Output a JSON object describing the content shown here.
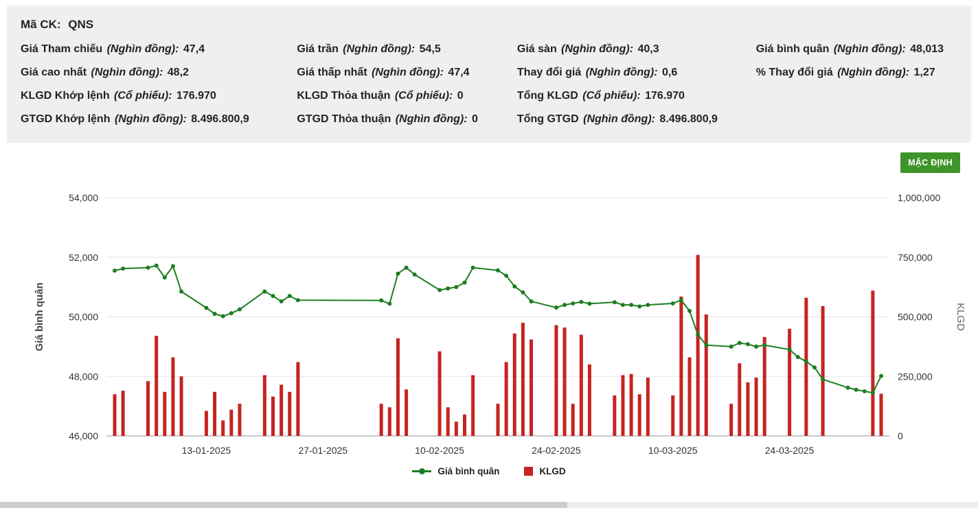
{
  "info": {
    "symbol_label": "Mã CK:",
    "symbol": "QNS",
    "cells": [
      {
        "label": "Giá Tham chiếu",
        "unit": "(Nghìn đồng):",
        "value": "47,4"
      },
      {
        "label": "Giá trần",
        "unit": "(Nghìn đồng):",
        "value": "54,5"
      },
      {
        "label": "Giá sàn",
        "unit": "(Nghìn đồng):",
        "value": "40,3"
      },
      {
        "label": "Giá bình quân",
        "unit": "(Nghìn đồng):",
        "value": "48,013"
      },
      {
        "label": "Giá cao nhất",
        "unit": "(Nghìn đồng):",
        "value": "48,2"
      },
      {
        "label": "Giá thấp nhất",
        "unit": "(Nghìn đồng):",
        "value": "47,4"
      },
      {
        "label": "Thay đổi giá",
        "unit": "(Nghìn đồng):",
        "value": "0,6"
      },
      {
        "label": "% Thay đổi giá",
        "unit": "(Nghìn đồng):",
        "value": "1,27"
      },
      {
        "label": "KLGD Khớp lệnh",
        "unit": "(Cổ phiếu):",
        "value": "176.970"
      },
      {
        "label": "KLGD Thỏa thuận",
        "unit": "(Cổ phiếu):",
        "value": "0"
      },
      {
        "label": "Tổng KLGD",
        "unit": "(Cổ phiếu):",
        "value": "176.970"
      },
      {
        "label": "GTGD Khớp lệnh",
        "unit": "(Nghìn đồng):",
        "value": "8.496.800,9"
      },
      {
        "label": "GTGD Thỏa thuận",
        "unit": "(Nghìn đồng):",
        "value": "0"
      },
      {
        "label": "Tổng GTGD",
        "unit": "(Nghìn đồng):",
        "value": "8.496.800,9"
      }
    ]
  },
  "chart": {
    "button_label": "MẶC ĐỊNH",
    "legend": [
      {
        "name": "Giá bình quân",
        "type": "line"
      },
      {
        "name": "KLGD",
        "type": "bar"
      }
    ]
  },
  "colors": {
    "line_green": "#1e7d20",
    "bar_red": "#c62420",
    "button_green": "#3d9428",
    "grid": "#e4e4e4",
    "text": "#333333"
  },
  "chart_data": {
    "type": "line+bar",
    "title": "",
    "xlabel": "",
    "ylabel_left": "Giá bình quân",
    "ylabel_right": "KLGD",
    "y_left_range": [
      46000,
      54000
    ],
    "y_right_range": [
      0,
      1000000
    ],
    "grid": true,
    "legend_position": "bottom",
    "price_ticks": [
      "46,000",
      "48,000",
      "50,000",
      "52,000",
      "54,000"
    ],
    "volume_ticks": [
      "0",
      "250,000",
      "500,000",
      "750,000",
      "1,000,000"
    ],
    "x_ticks": [
      "13-01-2025",
      "27-01-2025",
      "10-02-2025",
      "24-02-2025",
      "10-03-2025",
      "24-03-2025"
    ],
    "series": [
      {
        "name": "Giá bình quân",
        "type": "line",
        "axis": "left"
      },
      {
        "name": "KLGD",
        "type": "bar",
        "axis": "right"
      }
    ],
    "points": [
      {
        "date": "02-01-2025",
        "price": 51550,
        "volume": 175000
      },
      {
        "date": "03-01-2025",
        "price": 51620,
        "volume": 190000
      },
      {
        "date": "06-01-2025",
        "price": 51650,
        "volume": 230000
      },
      {
        "date": "07-01-2025",
        "price": 51720,
        "volume": 420000
      },
      {
        "date": "08-01-2025",
        "price": 51320,
        "volume": 185000
      },
      {
        "date": "09-01-2025",
        "price": 51700,
        "volume": 330000
      },
      {
        "date": "10-01-2025",
        "price": 50850,
        "volume": 250000
      },
      {
        "date": "13-01-2025",
        "price": 50300,
        "volume": 105000
      },
      {
        "date": "14-01-2025",
        "price": 50100,
        "volume": 185000
      },
      {
        "date": "15-01-2025",
        "price": 50020,
        "volume": 65000
      },
      {
        "date": "16-01-2025",
        "price": 50120,
        "volume": 110000
      },
      {
        "date": "17-01-2025",
        "price": 50250,
        "volume": 135000
      },
      {
        "date": "20-01-2025",
        "price": 50850,
        "volume": 255000
      },
      {
        "date": "21-01-2025",
        "price": 50700,
        "volume": 165000
      },
      {
        "date": "22-01-2025",
        "price": 50520,
        "volume": 215000
      },
      {
        "date": "23-01-2025",
        "price": 50700,
        "volume": 185000
      },
      {
        "date": "24-01-2025",
        "price": 50560,
        "volume": 310000
      },
      {
        "date": "03-02-2025",
        "price": 50550,
        "volume": 135000
      },
      {
        "date": "04-02-2025",
        "price": 50440,
        "volume": 120000
      },
      {
        "date": "05-02-2025",
        "price": 51450,
        "volume": 410000
      },
      {
        "date": "06-02-2025",
        "price": 51650,
        "volume": 195000
      },
      {
        "date": "07-02-2025",
        "price": 51420,
        "volume": 0
      },
      {
        "date": "10-02-2025",
        "price": 50900,
        "volume": 355000
      },
      {
        "date": "11-02-2025",
        "price": 50950,
        "volume": 120000
      },
      {
        "date": "12-02-2025",
        "price": 51000,
        "volume": 60000
      },
      {
        "date": "13-02-2025",
        "price": 51150,
        "volume": 90000
      },
      {
        "date": "14-02-2025",
        "price": 51650,
        "volume": 255000
      },
      {
        "date": "17-02-2025",
        "price": 51560,
        "volume": 135000
      },
      {
        "date": "18-02-2025",
        "price": 51380,
        "volume": 310000
      },
      {
        "date": "19-02-2025",
        "price": 51020,
        "volume": 430000
      },
      {
        "date": "20-02-2025",
        "price": 50820,
        "volume": 475000
      },
      {
        "date": "21-02-2025",
        "price": 50520,
        "volume": 405000
      },
      {
        "date": "24-02-2025",
        "price": 50310,
        "volume": 465000
      },
      {
        "date": "25-02-2025",
        "price": 50400,
        "volume": 455000
      },
      {
        "date": "26-02-2025",
        "price": 50450,
        "volume": 135000
      },
      {
        "date": "27-02-2025",
        "price": 50500,
        "volume": 425000
      },
      {
        "date": "28-02-2025",
        "price": 50440,
        "volume": 300000
      },
      {
        "date": "03-03-2025",
        "price": 50490,
        "volume": 170000
      },
      {
        "date": "04-03-2025",
        "price": 50400,
        "volume": 255000
      },
      {
        "date": "05-03-2025",
        "price": 50400,
        "volume": 260000
      },
      {
        "date": "06-03-2025",
        "price": 50350,
        "volume": 175000
      },
      {
        "date": "07-03-2025",
        "price": 50400,
        "volume": 245000
      },
      {
        "date": "10-03-2025",
        "price": 50450,
        "volume": 170000
      },
      {
        "date": "11-03-2025",
        "price": 50560,
        "volume": 585000
      },
      {
        "date": "12-03-2025",
        "price": 50200,
        "volume": 330000
      },
      {
        "date": "13-03-2025",
        "price": 49400,
        "volume": 760000
      },
      {
        "date": "14-03-2025",
        "price": 49050,
        "volume": 510000
      },
      {
        "date": "17-03-2025",
        "price": 49000,
        "volume": 135000
      },
      {
        "date": "18-03-2025",
        "price": 49120,
        "volume": 305000
      },
      {
        "date": "19-03-2025",
        "price": 49080,
        "volume": 225000
      },
      {
        "date": "20-03-2025",
        "price": 49000,
        "volume": 245000
      },
      {
        "date": "21-03-2025",
        "price": 49050,
        "volume": 415000
      },
      {
        "date": "24-03-2025",
        "price": 48900,
        "volume": 450000
      },
      {
        "date": "25-03-2025",
        "price": 48650,
        "volume": 0
      },
      {
        "date": "26-03-2025",
        "price": 48500,
        "volume": 580000
      },
      {
        "date": "27-03-2025",
        "price": 48300,
        "volume": 0
      },
      {
        "date": "28-03-2025",
        "price": 47900,
        "volume": 545000
      },
      {
        "date": "31-03-2025",
        "price": 47620,
        "volume": 0
      },
      {
        "date": "01-04-2025",
        "price": 47550,
        "volume": 0
      },
      {
        "date": "02-04-2025",
        "price": 47500,
        "volume": 0
      },
      {
        "date": "03-04-2025",
        "price": 47450,
        "volume": 610000
      },
      {
        "date": "04-04-2025",
        "price": 48013,
        "volume": 176970
      }
    ]
  }
}
